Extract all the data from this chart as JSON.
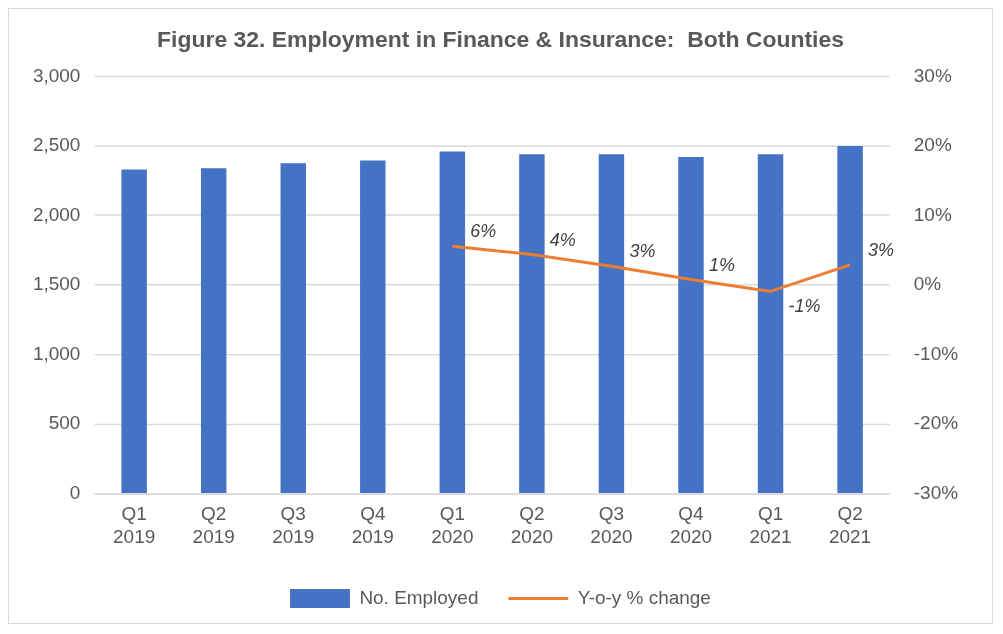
{
  "chart_data": {
    "type": "bar",
    "title": "Figure 32. Employment in Finance & Insurance:  Both Counties",
    "categories": [
      "Q1 2019",
      "Q2 2019",
      "Q3 2019",
      "Q4 2019",
      "Q1 2020",
      "Q2 2020",
      "Q3 2020",
      "Q4 2020",
      "Q1 2021",
      "Q2 2021"
    ],
    "series": [
      {
        "name": "No. Employed",
        "color": "#4472c4",
        "values": [
          2330,
          2340,
          2375,
          2395,
          2460,
          2440,
          2440,
          2420,
          2440,
          2500
        ]
      },
      {
        "name": "Y-o-y % change",
        "type": "line",
        "axis": "y2",
        "color": "#ed7d31",
        "values": [
          null,
          null,
          null,
          null,
          5.6,
          4.4,
          2.7,
          0.8,
          -0.9,
          2.9
        ],
        "value_labels": [
          null,
          null,
          null,
          null,
          "6%",
          "4%",
          "3%",
          "1%",
          "-1%",
          "3%"
        ]
      }
    ],
    "ylim": [
      0,
      3000
    ],
    "yticks": [
      0,
      500,
      {
        "value": 1000,
        "label": "1,000"
      },
      {
        "value": 1500,
        "label": "1,500"
      },
      {
        "value": 2000,
        "label": "2,000"
      },
      {
        "value": 2500,
        "label": "2,500"
      },
      {
        "value": 3000,
        "label": "3,000"
      }
    ],
    "y2lim": [
      -30,
      30
    ],
    "y2ticks": [
      {
        "value": -30,
        "label": "-30%"
      },
      {
        "value": -20,
        "label": "-20%"
      },
      {
        "value": -10,
        "label": "-10%"
      },
      {
        "value": 0,
        "label": "0%"
      },
      {
        "value": 10,
        "label": "10%"
      },
      {
        "value": 20,
        "label": "20%"
      },
      {
        "value": 30,
        "label": "30%"
      }
    ],
    "grid": "y",
    "legend": "bottom",
    "marker": "none",
    "line_style": "solid"
  }
}
